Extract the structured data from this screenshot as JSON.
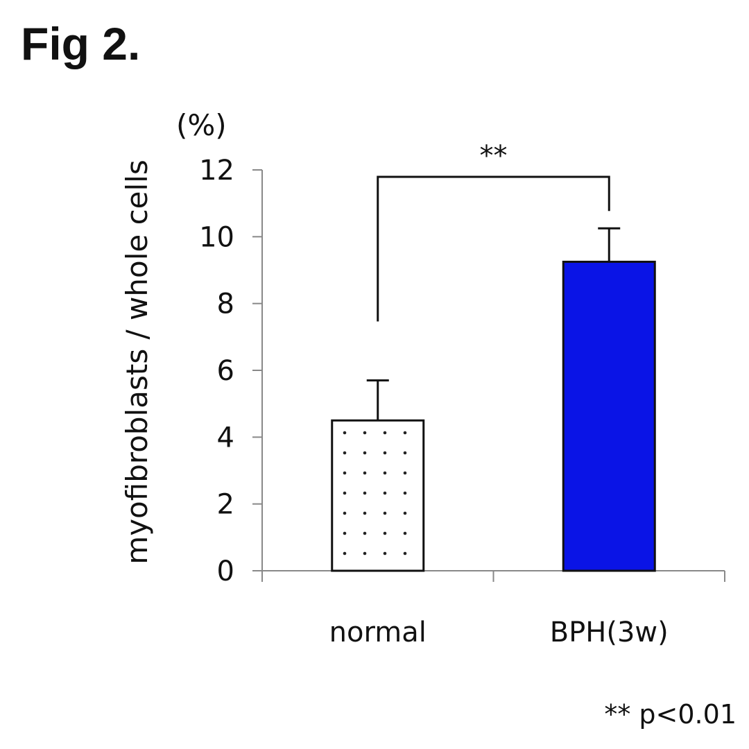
{
  "figure_label": "Fig 2.",
  "chart_data": {
    "type": "bar",
    "categories": [
      "normal",
      "BPH(3w)"
    ],
    "values": [
      4.5,
      9.25
    ],
    "errors": [
      1.2,
      1.0
    ],
    "title": "",
    "xlabel": "",
    "ylabel": "myofibroblasts  / whole cells",
    "y_unit": "(%)",
    "ylim": [
      0,
      12
    ],
    "yticks": [
      0,
      2,
      4,
      6,
      8,
      10,
      12
    ],
    "bar_colors": [
      "#ffffff",
      "#0a14e6"
    ],
    "bar_patterns": [
      "dotted",
      "solid"
    ],
    "grid": false,
    "legend": "none",
    "significance": {
      "label": "**",
      "between": [
        "normal",
        "BPH(3w)"
      ]
    },
    "footnote": "** p<0.01"
  }
}
